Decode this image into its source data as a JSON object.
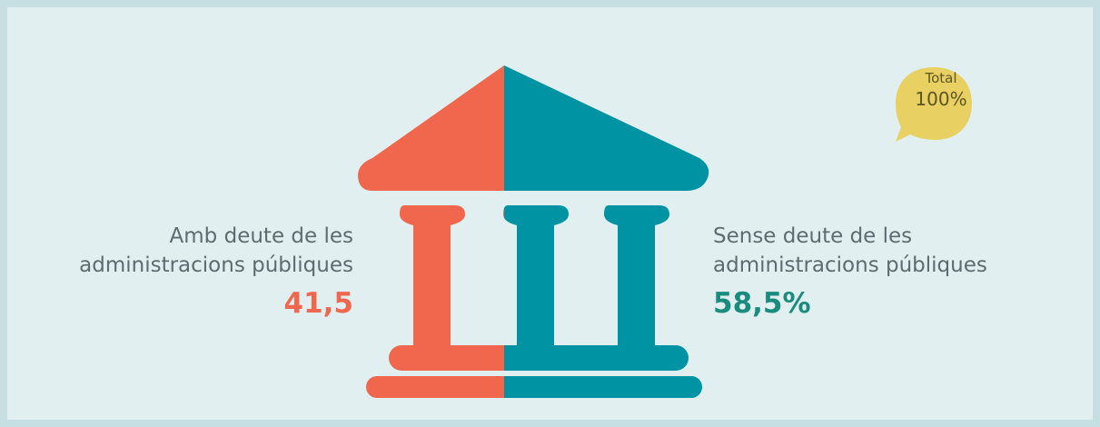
{
  "chart_data": {
    "type": "pie",
    "categories": [
      "Amb deute de les administracions públiques",
      "Sense deute de les administracions públiques"
    ],
    "values": [
      41.5,
      58.5
    ],
    "value_labels": [
      "41,5",
      "58,5%"
    ],
    "colors": [
      "#f0674d",
      "#0093a3"
    ],
    "label_colors": [
      "#f0674d",
      "#1a8c7e"
    ],
    "total": {
      "label": "Total",
      "value": "100%",
      "color": "#e8d162"
    }
  },
  "labels": {
    "left_line1": "Amb deute de les",
    "left_line2": "administracions públiques",
    "right_line1": "Sense deute de les",
    "right_line2": "administracions públiques"
  }
}
